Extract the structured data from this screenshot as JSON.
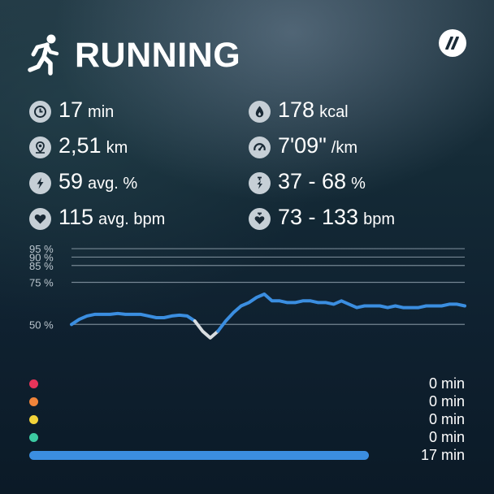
{
  "header": {
    "title": "RUNNING",
    "activity_icon": "runner-icon",
    "brand_icon": "brand-logo-icon"
  },
  "stats": {
    "duration": {
      "value": "17",
      "unit": "min",
      "icon": "clock-icon"
    },
    "calories": {
      "value": "178",
      "unit": "kcal",
      "icon": "flame-drop-icon"
    },
    "distance": {
      "value": "2,51",
      "unit": "km",
      "icon": "location-pin-icon"
    },
    "pace": {
      "value": "7'09\"",
      "unit": "/km",
      "icon": "speedometer-icon"
    },
    "intensity_avg": {
      "value": "59",
      "unit": "avg. %",
      "icon": "lightning-icon"
    },
    "intensity_range": {
      "value": "37 - 68",
      "unit": "%",
      "icon": "range-icon"
    },
    "hr_avg": {
      "value": "115",
      "unit": "avg. bpm",
      "icon": "heart-icon"
    },
    "hr_range": {
      "value": "73 - 133",
      "unit": "bpm",
      "icon": "heart-range-icon"
    }
  },
  "chart_data": {
    "type": "line",
    "ytick_labels": [
      "95 %",
      "90 %",
      "85 %",
      "75 %",
      "50 %"
    ],
    "yticks": [
      95,
      90,
      85,
      75,
      50
    ],
    "ylim": [
      40,
      96
    ],
    "series": [
      {
        "values": [
          50,
          53,
          55,
          56,
          56,
          56,
          56.5,
          56,
          56,
          56,
          55,
          54,
          54,
          55,
          55.5,
          55,
          52,
          46,
          42,
          46,
          52,
          57,
          61,
          63,
          66,
          68,
          64,
          64,
          63,
          63,
          64,
          64,
          63,
          63,
          62,
          64,
          62,
          60,
          61,
          61,
          61,
          60,
          61,
          60,
          60,
          60,
          61,
          61,
          61,
          62,
          62,
          61
        ]
      }
    ],
    "line_color": "#3b8ee0",
    "low_color": "#d9dde0",
    "low_threshold": 50
  },
  "zones": [
    {
      "color": "#e8345a",
      "time": "0 min",
      "fraction": 0
    },
    {
      "color": "#f0843a",
      "time": "0 min",
      "fraction": 0
    },
    {
      "color": "#f2d33a",
      "time": "0 min",
      "fraction": 0
    },
    {
      "color": "#3ccaa2",
      "time": "0 min",
      "fraction": 0
    },
    {
      "color": "#3b8ee0",
      "time": "17 min",
      "fraction": 0.78
    }
  ]
}
